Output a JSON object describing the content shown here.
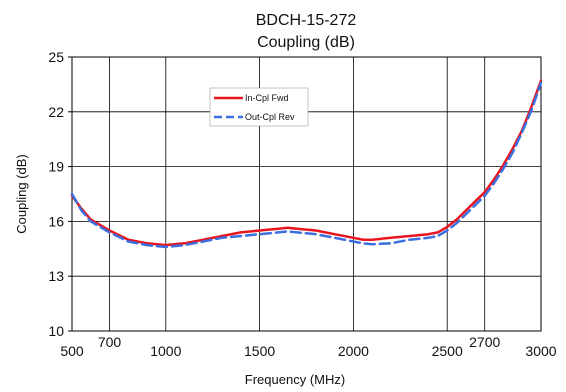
{
  "chart_data": {
    "type": "line",
    "title": "BDCH-15-272",
    "subtitle": "Coupling (dB)",
    "xlabel": "Frequency (MHz)",
    "ylabel": "Coupling (dB)",
    "xlim": [
      500,
      3000
    ],
    "ylim": [
      10,
      25
    ],
    "x_gridlines": [
      700,
      1000,
      1500,
      2000,
      2500,
      2700,
      3000
    ],
    "x_tick_labels": [
      "500",
      "700",
      "1000",
      "1500",
      "2000",
      "2500",
      "2700",
      "3000"
    ],
    "y_ticks": [
      10,
      13,
      16,
      19,
      22,
      25
    ],
    "y_tick_labels": [
      "10",
      "13",
      "16",
      "19",
      "22",
      "25"
    ],
    "grid": true,
    "legend_position": "top-center",
    "series": [
      {
        "name": "In-Cpl Fwd",
        "color": "#e8141e",
        "dash": "solid",
        "x": [
          500,
          550,
          600,
          700,
          800,
          900,
          1000,
          1100,
          1200,
          1300,
          1400,
          1500,
          1600,
          1650,
          1700,
          1800,
          1900,
          2000,
          2050,
          2100,
          2200,
          2300,
          2400,
          2450,
          2500,
          2550,
          2600,
          2650,
          2700,
          2750,
          2800,
          2850,
          2900,
          2950,
          3000
        ],
        "y": [
          17.4,
          16.7,
          16.1,
          15.5,
          15.0,
          14.8,
          14.7,
          14.8,
          15.0,
          15.2,
          15.4,
          15.5,
          15.6,
          15.65,
          15.6,
          15.5,
          15.3,
          15.1,
          15.0,
          15.0,
          15.1,
          15.2,
          15.3,
          15.4,
          15.7,
          16.1,
          16.6,
          17.1,
          17.6,
          18.3,
          19.1,
          20.0,
          21.0,
          22.3,
          23.7
        ]
      },
      {
        "name": "Out-Cpl Rev",
        "color": "#3b6fe0",
        "dash": "dashed",
        "x": [
          500,
          550,
          600,
          700,
          800,
          900,
          1000,
          1100,
          1200,
          1300,
          1400,
          1500,
          1600,
          1650,
          1700,
          1800,
          1900,
          2000,
          2050,
          2100,
          2200,
          2300,
          2400,
          2450,
          2500,
          2550,
          2600,
          2650,
          2700,
          2750,
          2800,
          2850,
          2900,
          2950,
          3000
        ],
        "y": [
          17.5,
          16.6,
          16.0,
          15.4,
          14.9,
          14.7,
          14.6,
          14.7,
          14.9,
          15.1,
          15.2,
          15.3,
          15.4,
          15.45,
          15.4,
          15.3,
          15.1,
          14.9,
          14.8,
          14.75,
          14.8,
          15.0,
          15.1,
          15.2,
          15.5,
          15.9,
          16.4,
          16.9,
          17.4,
          18.1,
          18.9,
          19.8,
          20.9,
          22.1,
          23.6
        ]
      }
    ]
  }
}
